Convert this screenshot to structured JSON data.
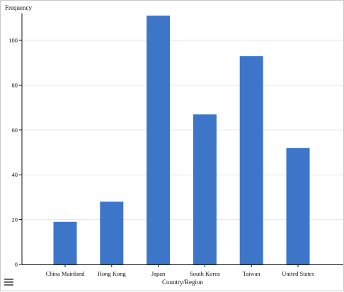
{
  "chart_data": {
    "type": "bar",
    "categories": [
      "China Mainland",
      "Hong Kong",
      "Japan",
      "South Korea",
      "Taiwan",
      "United States"
    ],
    "values": [
      19,
      28,
      111,
      67,
      93,
      52
    ],
    "xlabel": "Country/Region",
    "ylabel": "Frequency",
    "ylim": [
      0,
      112
    ],
    "yticks": [
      0,
      20,
      40,
      60,
      80,
      100
    ],
    "grid": true,
    "bar_color": "#3d76c9"
  },
  "ui": {
    "menu_icon": "hamburger-menu-icon"
  }
}
